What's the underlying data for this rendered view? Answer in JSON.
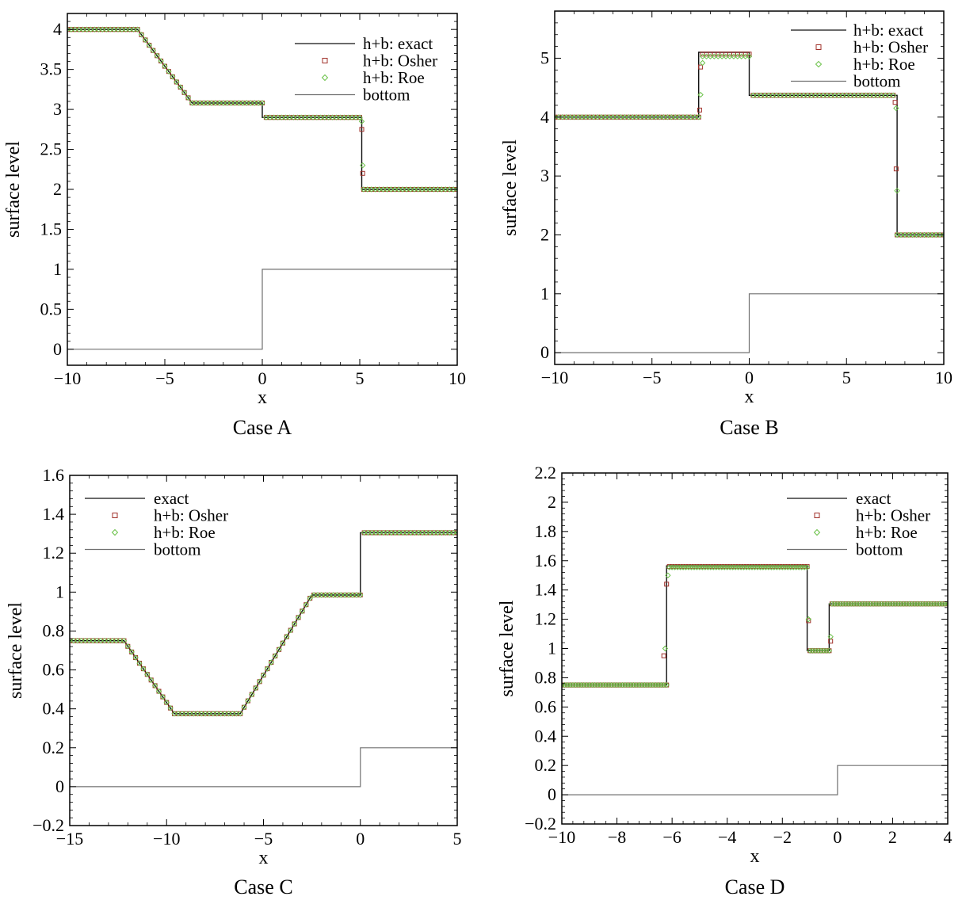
{
  "figure": {
    "colors": {
      "exact": "#111111",
      "bottom": "#707070",
      "osher": "#a0302a",
      "roe": "#6cc24a",
      "axis": "#000000"
    }
  },
  "chart_data": [
    {
      "id": "A",
      "type": "line",
      "title": "Case A",
      "xlabel": "x",
      "ylabel": "surface level",
      "xlim": [
        -10,
        10
      ],
      "ylim": [
        -0.2,
        4.2
      ],
      "xticks": [
        -10,
        -5,
        0,
        5,
        10
      ],
      "xtick_labels": [
        "−10",
        "−5",
        "0",
        "5",
        "10"
      ],
      "yticks": [
        0,
        0.5,
        1,
        1.5,
        2,
        2.5,
        3,
        3.5,
        4
      ],
      "ytick_labels": [
        "0",
        "0.5",
        "1",
        "1.5",
        "2",
        "2.5",
        "3",
        "3.5",
        "4"
      ],
      "legend_position": "top-right",
      "legend": [
        "h+b: exact",
        "h+b: Osher",
        "h+b: Roe",
        "bottom"
      ],
      "series": [
        {
          "name": "h+b: exact",
          "style": "line",
          "color": "exact",
          "x": [
            -10,
            -6.4,
            -3.6,
            0,
            0,
            5.1,
            5.1,
            10
          ],
          "y": [
            4.0,
            4.0,
            3.08,
            3.08,
            2.9,
            2.9,
            2.0,
            2.0
          ]
        },
        {
          "name": "h+b: Osher",
          "style": "square",
          "color": "osher",
          "x": [
            -10,
            -6.4,
            -3.6,
            0,
            0,
            5.1,
            5.1,
            10
          ],
          "y": [
            4.0,
            4.0,
            3.08,
            3.08,
            2.9,
            2.9,
            2.0,
            2.0
          ],
          "step": 0.2,
          "extra_x": [
            5.1,
            5.15
          ],
          "extra_y": [
            2.75,
            2.2
          ]
        },
        {
          "name": "h+b: Roe",
          "style": "diamond",
          "color": "roe",
          "x": [
            -10,
            -6.4,
            -3.6,
            0,
            0,
            5.1,
            5.1,
            10
          ],
          "y": [
            4.0,
            4.0,
            3.08,
            3.08,
            2.9,
            2.9,
            2.0,
            2.0
          ],
          "step": 0.2,
          "extra_x": [
            5.1,
            5.15
          ],
          "extra_y": [
            2.85,
            2.3
          ]
        },
        {
          "name": "bottom",
          "style": "line",
          "color": "bottom",
          "x": [
            -10,
            0,
            0,
            10
          ],
          "y": [
            0,
            0,
            1,
            1
          ]
        }
      ]
    },
    {
      "id": "B",
      "type": "line",
      "title": "Case B",
      "xlabel": "x",
      "ylabel": "surface level",
      "xlim": [
        -10,
        10
      ],
      "ylim": [
        -0.2,
        5.8
      ],
      "xticks": [
        -10,
        -5,
        0,
        5,
        10
      ],
      "xtick_labels": [
        "−10",
        "−5",
        "0",
        "5",
        "10"
      ],
      "yticks": [
        0,
        1,
        2,
        3,
        4,
        5
      ],
      "ytick_labels": [
        "0",
        "1",
        "2",
        "3",
        "4",
        "5"
      ],
      "legend_position": "top-right",
      "legend": [
        "h+b: exact",
        "h+b: Osher",
        "h+b: Roe",
        "bottom"
      ],
      "series": [
        {
          "name": "h+b: exact",
          "style": "line",
          "color": "exact",
          "x": [
            -10,
            -2.6,
            -2.6,
            0,
            0,
            7.6,
            7.6,
            10
          ],
          "y": [
            4.0,
            4.0,
            5.1,
            5.1,
            4.37,
            4.37,
            2.0,
            2.0
          ]
        },
        {
          "name": "h+b: Osher",
          "style": "square",
          "color": "osher",
          "x": [
            -10,
            -2.6,
            -2.6,
            0,
            0,
            7.6,
            7.6,
            10
          ],
          "y": [
            4.0,
            4.0,
            5.07,
            5.07,
            4.37,
            4.37,
            2.0,
            2.0
          ],
          "step": 0.2,
          "extra_x": [
            -2.55,
            -2.5,
            7.5,
            7.55
          ],
          "extra_y": [
            4.12,
            4.85,
            4.25,
            3.12
          ]
        },
        {
          "name": "h+b: Roe",
          "style": "diamond",
          "color": "roe",
          "x": [
            -10,
            -2.6,
            -2.6,
            0,
            0,
            7.6,
            7.6,
            10
          ],
          "y": [
            4.0,
            4.0,
            5.03,
            5.03,
            4.37,
            4.37,
            2.0,
            2.0
          ],
          "step": 0.2,
          "extra_x": [
            -2.5,
            -2.4,
            7.55,
            7.6
          ],
          "extra_y": [
            4.38,
            4.92,
            4.15,
            2.75
          ]
        },
        {
          "name": "bottom",
          "style": "line",
          "color": "bottom",
          "x": [
            -10,
            0,
            0,
            10
          ],
          "y": [
            0,
            0,
            1,
            1
          ]
        }
      ]
    },
    {
      "id": "C",
      "type": "line",
      "title": "Case C",
      "xlabel": "x",
      "ylabel": "surface level",
      "xlim": [
        -15,
        5
      ],
      "ylim": [
        -0.2,
        1.6
      ],
      "xticks": [
        -15,
        -10,
        -5,
        0,
        5
      ],
      "xtick_labels": [
        "−15",
        "−10",
        "−5",
        "0",
        "5"
      ],
      "yticks": [
        -0.2,
        0,
        0.2,
        0.4,
        0.6,
        0.8,
        1,
        1.2,
        1.4,
        1.6
      ],
      "ytick_labels": [
        "−0.2",
        "0",
        "0.2",
        "0.4",
        "0.6",
        "0.8",
        "1",
        "1.2",
        "1.4",
        "1.6"
      ],
      "legend_position": "top-left",
      "legend": [
        "exact",
        "h+b: Osher",
        "h+b: Roe",
        "bottom"
      ],
      "series": [
        {
          "name": "exact",
          "style": "line",
          "color": "exact",
          "x": [
            -15,
            -12.2,
            -9.6,
            -6.2,
            -2.5,
            0,
            0,
            5
          ],
          "y": [
            0.75,
            0.75,
            0.375,
            0.375,
            0.985,
            0.985,
            1.305,
            1.305
          ]
        },
        {
          "name": "h+b: Osher",
          "style": "square",
          "color": "osher",
          "x": [
            -15,
            -12.2,
            -9.6,
            -6.2,
            -2.5,
            0,
            0,
            5
          ],
          "y": [
            0.75,
            0.75,
            0.375,
            0.375,
            0.985,
            0.985,
            1.305,
            1.305
          ],
          "step": 0.2,
          "extra_x": [],
          "extra_y": []
        },
        {
          "name": "h+b: Roe",
          "style": "diamond",
          "color": "roe",
          "x": [
            -15,
            -12.2,
            -9.6,
            -6.2,
            -2.5,
            0,
            0,
            5
          ],
          "y": [
            0.75,
            0.75,
            0.375,
            0.375,
            0.985,
            0.985,
            1.305,
            1.305
          ],
          "step": 0.2,
          "extra_x": [],
          "extra_y": []
        },
        {
          "name": "bottom",
          "style": "line",
          "color": "bottom",
          "x": [
            -15,
            0,
            0,
            5
          ],
          "y": [
            0,
            0,
            0.2,
            0.2
          ]
        }
      ]
    },
    {
      "id": "D",
      "type": "line",
      "title": "Case D",
      "xlabel": "x",
      "ylabel": "surface level",
      "xlim": [
        -10,
        4
      ],
      "ylim": [
        -0.2,
        2.2
      ],
      "xticks": [
        -10,
        -8,
        -6,
        -4,
        -2,
        0,
        2,
        4
      ],
      "xtick_labels": [
        "−10",
        "−8",
        "−6",
        "−4",
        "−2",
        "0",
        "2",
        "4"
      ],
      "yticks": [
        -0.2,
        0,
        0.2,
        0.4,
        0.6,
        0.8,
        1,
        1.2,
        1.4,
        1.6,
        1.8,
        2,
        2.2
      ],
      "ytick_labels": [
        "−0.2",
        "0",
        "0.2",
        "0.4",
        "0.6",
        "0.8",
        "1",
        "1.2",
        "1.4",
        "1.6",
        "1.8",
        "2",
        "2.2"
      ],
      "legend_position": "top-right",
      "legend": [
        "exact",
        "h+b: Osher",
        "h+b: Roe",
        "bottom"
      ],
      "series": [
        {
          "name": "exact",
          "style": "line",
          "color": "exact",
          "x": [
            -10,
            -6.2,
            -6.2,
            -1.1,
            -1.1,
            -0.3,
            -0.3,
            4
          ],
          "y": [
            0.75,
            0.75,
            1.565,
            1.565,
            0.985,
            0.985,
            1.305,
            1.305
          ]
        },
        {
          "name": "h+b: Osher",
          "style": "square",
          "color": "osher",
          "x": [
            -10,
            -6.2,
            -6.2,
            -1.1,
            -1.1,
            -0.3,
            -0.3,
            4
          ],
          "y": [
            0.75,
            0.75,
            1.56,
            1.56,
            0.985,
            0.985,
            1.305,
            1.305
          ],
          "step": 0.1,
          "extra_x": [
            -6.3,
            -6.2,
            -1.05,
            -0.25
          ],
          "extra_y": [
            0.95,
            1.44,
            1.19,
            1.05
          ]
        },
        {
          "name": "h+b: Roe",
          "style": "diamond",
          "color": "roe",
          "x": [
            -10,
            -6.2,
            -6.2,
            -1.1,
            -1.1,
            -0.3,
            -0.3,
            4
          ],
          "y": [
            0.75,
            0.75,
            1.555,
            1.555,
            0.985,
            0.985,
            1.305,
            1.305
          ],
          "step": 0.1,
          "extra_x": [
            -6.25,
            -6.15,
            -1.05,
            -0.25
          ],
          "extra_y": [
            1.0,
            1.5,
            1.2,
            1.08
          ]
        },
        {
          "name": "bottom",
          "style": "line",
          "color": "bottom",
          "x": [
            -10,
            0,
            0,
            4
          ],
          "y": [
            0,
            0,
            0.2,
            0.2
          ]
        }
      ]
    }
  ]
}
